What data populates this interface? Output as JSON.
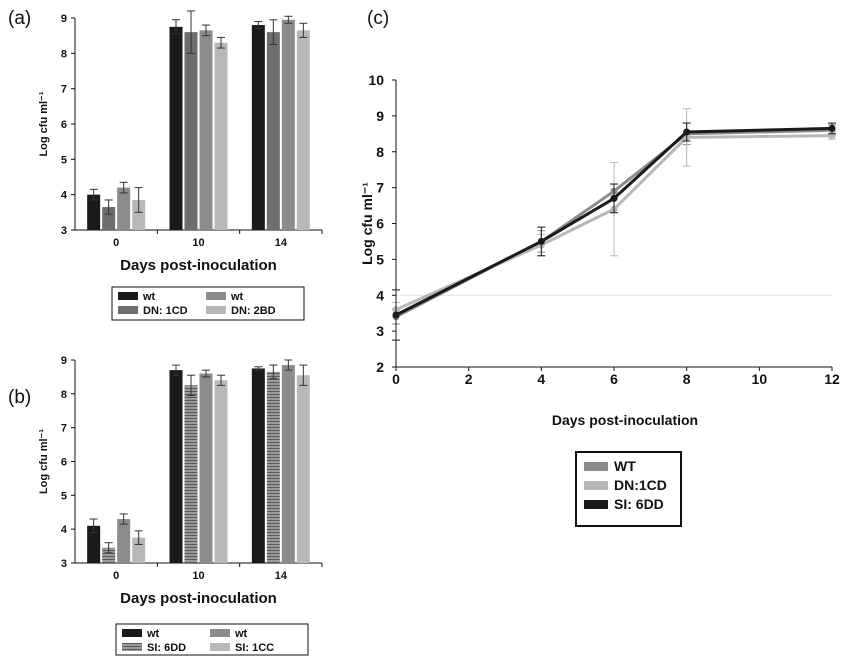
{
  "panels": {
    "a": "(a)",
    "b": "(b)",
    "c": "(c)"
  },
  "colors": {
    "black": "#1a1a1a",
    "darkgray": "#6e6e6e",
    "midgray": "#8c8c8c",
    "lightgray": "#b8b8b8",
    "hatched": "#8a8a8a"
  },
  "chart_data": [
    {
      "id": "a",
      "type": "bar",
      "xlabel": "Days post-inoculation",
      "ylabel": "Log cfu ml⁻¹",
      "ylim": [
        3,
        9
      ],
      "yticks": [
        3,
        4,
        5,
        6,
        7,
        8,
        9
      ],
      "categories": [
        "0",
        "10",
        "14"
      ],
      "series": [
        {
          "name": "wt",
          "color": "black",
          "values": [
            4.0,
            8.75,
            8.8
          ],
          "errors": [
            0.15,
            0.2,
            0.1
          ]
        },
        {
          "name": "DN: 1CD",
          "color": "darkgray",
          "values": [
            3.65,
            8.6,
            8.6
          ],
          "errors": [
            0.2,
            0.6,
            0.35
          ]
        },
        {
          "name": "wt",
          "color": "midgray",
          "values": [
            4.2,
            8.65,
            8.95
          ],
          "errors": [
            0.15,
            0.15,
            0.1
          ]
        },
        {
          "name": "DN: 2BD",
          "color": "lightgray",
          "values": [
            3.85,
            8.3,
            8.65
          ],
          "errors": [
            0.35,
            0.15,
            0.2
          ]
        }
      ],
      "legend_order": [
        0,
        2,
        1,
        3
      ]
    },
    {
      "id": "b",
      "type": "bar",
      "xlabel": "Days post-inoculation",
      "ylabel": "Log cfu ml⁻¹",
      "ylim": [
        3,
        9
      ],
      "yticks": [
        3,
        4,
        5,
        6,
        7,
        8,
        9
      ],
      "categories": [
        "0",
        "10",
        "14"
      ],
      "series": [
        {
          "name": "wt",
          "color": "black",
          "values": [
            4.1,
            8.7,
            8.75
          ],
          "errors": [
            0.2,
            0.15,
            0.05
          ]
        },
        {
          "name": "SI: 6DD",
          "color": "hatched",
          "values": [
            3.45,
            8.25,
            8.65
          ],
          "errors": [
            0.15,
            0.3,
            0.2
          ]
        },
        {
          "name": "wt",
          "color": "midgray",
          "values": [
            4.3,
            8.6,
            8.85
          ],
          "errors": [
            0.15,
            0.1,
            0.15
          ]
        },
        {
          "name": "SI: 1CC",
          "color": "lightgray",
          "values": [
            3.75,
            8.4,
            8.55
          ],
          "errors": [
            0.2,
            0.15,
            0.3
          ]
        }
      ],
      "legend_order": [
        0,
        2,
        1,
        3
      ]
    },
    {
      "id": "c",
      "type": "line",
      "xlabel": "Days post-inoculation",
      "ylabel": "Log cfu ml⁻¹",
      "xlim": [
        0,
        12
      ],
      "ylim": [
        2,
        10
      ],
      "xticks": [
        0,
        2,
        4,
        6,
        8,
        10,
        12
      ],
      "yticks": [
        2,
        3,
        4,
        5,
        6,
        7,
        8,
        9,
        10
      ],
      "x": [
        0,
        4,
        6,
        8,
        12
      ],
      "series": [
        {
          "name": "WT",
          "color": "midgray",
          "values": [
            3.4,
            5.5,
            6.9,
            8.5,
            8.6
          ],
          "errors": [
            0.2,
            0.3,
            0.2,
            0.3,
            0.15
          ]
        },
        {
          "name": "DN:1CD",
          "color": "lightgray",
          "values": [
            3.6,
            5.4,
            6.4,
            8.4,
            8.45
          ],
          "errors": [
            0.2,
            0.3,
            1.3,
            0.8,
            0.1
          ]
        },
        {
          "name": "SI: 6DD",
          "color": "black",
          "values": [
            3.45,
            5.5,
            6.7,
            8.55,
            8.65
          ],
          "errors": [
            0.7,
            0.4,
            0.4,
            0.25,
            0.15
          ]
        }
      ]
    }
  ]
}
